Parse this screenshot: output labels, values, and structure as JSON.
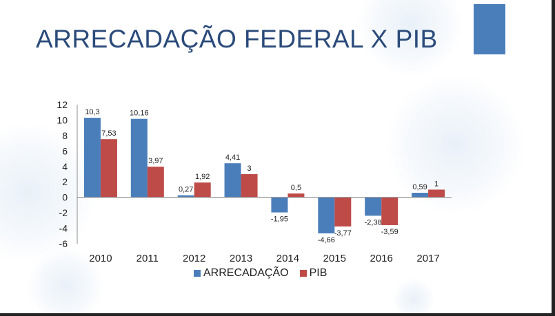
{
  "slide": {
    "title": "ARRECADAÇÃO FEDERAL X PIB",
    "accent_color": "#4a7ebb",
    "title_color": "#2a4a7a"
  },
  "chart_data": {
    "type": "bar",
    "title": "",
    "xlabel": "",
    "ylabel": "",
    "categories": [
      "2010",
      "2011",
      "2012",
      "2013",
      "2014",
      "2015",
      "2016",
      "2017"
    ],
    "series": [
      {
        "name": "ARRECADAÇÃO",
        "color": "#4a7ebb",
        "values": [
          10.3,
          10.16,
          0.27,
          4.41,
          -1.95,
          -4.66,
          -2.38,
          0.59
        ],
        "labels": [
          "10,3",
          "10,16",
          "0,27",
          "4,41",
          "-1,95",
          "-4,66",
          "-2,38",
          "0,59"
        ]
      },
      {
        "name": "PIB",
        "color": "#be4b48",
        "values": [
          7.53,
          3.97,
          1.92,
          3,
          0.5,
          -3.77,
          -3.59,
          1
        ],
        "labels": [
          "7,53",
          "3,97",
          "1,92",
          "3",
          "0,5",
          "-3,77",
          "-3,59",
          "1"
        ]
      }
    ],
    "ylim": [
      -6,
      12
    ],
    "yticks": [
      12,
      10,
      8,
      6,
      4,
      2,
      0,
      -2,
      -4,
      -6
    ],
    "grid": false,
    "legend_position": "bottom"
  }
}
